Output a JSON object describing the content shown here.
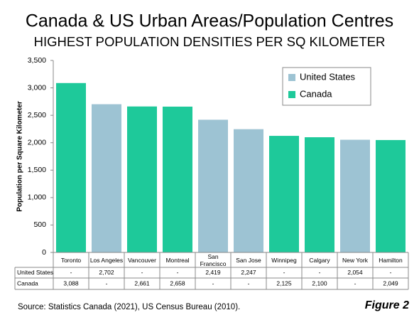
{
  "chart_data": {
    "type": "bar",
    "title": "Canada & US Urban Areas/Population Centres",
    "subtitle": "HIGHEST POPULATION DENSITIES PER SQ KILOMETER",
    "y_label": "Population per Square Kilometer",
    "categories": [
      "Toronto",
      "Los Angeles",
      "Vancouver",
      "Montreal",
      "San Francisco",
      "San Jose",
      "Winnipeg",
      "Calgary",
      "New York",
      "Hamilton"
    ],
    "series": [
      {
        "name": "United States",
        "color": "#9dc3d3",
        "values": [
          null,
          2702,
          null,
          null,
          2419,
          2247,
          null,
          null,
          2054,
          null
        ],
        "value_labels": [
          "-",
          "2,702",
          "-",
          "-",
          "2,419",
          "2,247",
          "-",
          "-",
          "2,054",
          "-"
        ]
      },
      {
        "name": "Canada",
        "color": "#1ec99a",
        "values": [
          3088,
          null,
          2661,
          2658,
          null,
          null,
          2125,
          2100,
          null,
          2049
        ],
        "value_labels": [
          "3,088",
          "-",
          "2,661",
          "2,658",
          "-",
          "-",
          "2,125",
          "2,100",
          "-",
          "2,049"
        ]
      }
    ],
    "ylim": [
      0,
      3500
    ],
    "yticks": [
      0,
      500,
      {
        "value": 1000,
        "label": "1,000"
      },
      {
        "value": 1500,
        "label": "1,500"
      },
      {
        "value": 2000,
        "label": "2,000"
      },
      {
        "value": 2500,
        "label": "2,500"
      },
      {
        "value": 3000,
        "label": "3,000"
      },
      {
        "value": 3500,
        "label": "3,500"
      }
    ],
    "grid": false,
    "legend_position": "top-right",
    "source": "Source: Statistics Canada (2021), US Census Bureau (2010).",
    "figure_label": "Figure 2"
  }
}
